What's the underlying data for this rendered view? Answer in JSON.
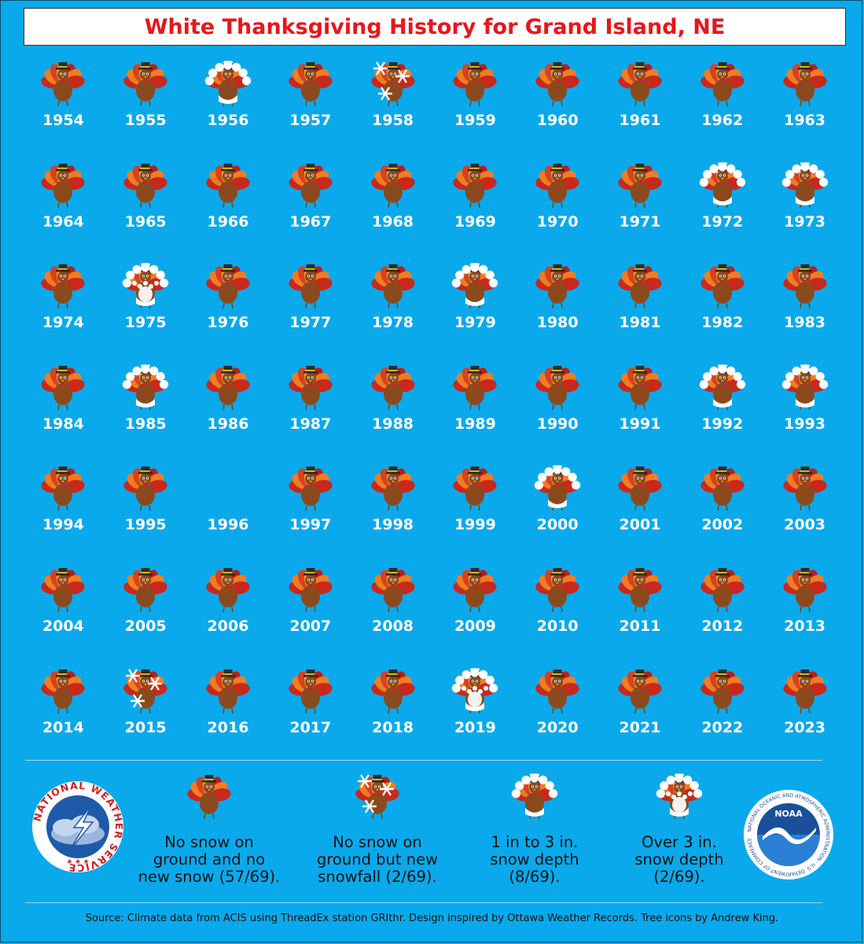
{
  "title": "White Thanksgiving History for Grand Island, NE",
  "colors": {
    "background": "#0aa9ec",
    "title": "#e8161b",
    "turkey_body": "#8b4a1d",
    "feather_red": "#c9281c",
    "feather_orange": "#ef7d22",
    "hat": "#2b2b2b"
  },
  "years": [
    {
      "year": "1954",
      "category": "none"
    },
    {
      "year": "1955",
      "category": "none"
    },
    {
      "year": "1956",
      "category": "depth_1_3"
    },
    {
      "year": "1957",
      "category": "none"
    },
    {
      "year": "1958",
      "category": "new_snowfall"
    },
    {
      "year": "1959",
      "category": "none"
    },
    {
      "year": "1960",
      "category": "none"
    },
    {
      "year": "1961",
      "category": "none"
    },
    {
      "year": "1962",
      "category": "none"
    },
    {
      "year": "1963",
      "category": "none"
    },
    {
      "year": "1964",
      "category": "none"
    },
    {
      "year": "1965",
      "category": "none"
    },
    {
      "year": "1966",
      "category": "none"
    },
    {
      "year": "1967",
      "category": "none"
    },
    {
      "year": "1968",
      "category": "none"
    },
    {
      "year": "1969",
      "category": "none"
    },
    {
      "year": "1970",
      "category": "none"
    },
    {
      "year": "1971",
      "category": "none"
    },
    {
      "year": "1972",
      "category": "depth_1_3"
    },
    {
      "year": "1973",
      "category": "depth_1_3"
    },
    {
      "year": "1974",
      "category": "none"
    },
    {
      "year": "1975",
      "category": "depth_over_3"
    },
    {
      "year": "1976",
      "category": "none"
    },
    {
      "year": "1977",
      "category": "none"
    },
    {
      "year": "1978",
      "category": "none"
    },
    {
      "year": "1979",
      "category": "depth_1_3"
    },
    {
      "year": "1980",
      "category": "none"
    },
    {
      "year": "1981",
      "category": "none"
    },
    {
      "year": "1982",
      "category": "none"
    },
    {
      "year": "1983",
      "category": "none"
    },
    {
      "year": "1984",
      "category": "none"
    },
    {
      "year": "1985",
      "category": "depth_1_3"
    },
    {
      "year": "1986",
      "category": "none"
    },
    {
      "year": "1987",
      "category": "none"
    },
    {
      "year": "1988",
      "category": "none"
    },
    {
      "year": "1989",
      "category": "none"
    },
    {
      "year": "1990",
      "category": "none"
    },
    {
      "year": "1991",
      "category": "none"
    },
    {
      "year": "1992",
      "category": "depth_1_3"
    },
    {
      "year": "1993",
      "category": "depth_1_3"
    },
    {
      "year": "1994",
      "category": "none"
    },
    {
      "year": "1995",
      "category": "none"
    },
    {
      "year": "1996",
      "category": "missing"
    },
    {
      "year": "1997",
      "category": "none"
    },
    {
      "year": "1998",
      "category": "none"
    },
    {
      "year": "1999",
      "category": "none"
    },
    {
      "year": "2000",
      "category": "depth_1_3"
    },
    {
      "year": "2001",
      "category": "none"
    },
    {
      "year": "2002",
      "category": "none"
    },
    {
      "year": "2003",
      "category": "none"
    },
    {
      "year": "2004",
      "category": "none"
    },
    {
      "year": "2005",
      "category": "none"
    },
    {
      "year": "2006",
      "category": "none"
    },
    {
      "year": "2007",
      "category": "none"
    },
    {
      "year": "2008",
      "category": "none"
    },
    {
      "year": "2009",
      "category": "none"
    },
    {
      "year": "2010",
      "category": "none"
    },
    {
      "year": "2011",
      "category": "none"
    },
    {
      "year": "2012",
      "category": "none"
    },
    {
      "year": "2013",
      "category": "none"
    },
    {
      "year": "2014",
      "category": "none"
    },
    {
      "year": "2015",
      "category": "new_snowfall"
    },
    {
      "year": "2016",
      "category": "none"
    },
    {
      "year": "2017",
      "category": "none"
    },
    {
      "year": "2018",
      "category": "none"
    },
    {
      "year": "2019",
      "category": "depth_over_3"
    },
    {
      "year": "2020",
      "category": "none"
    },
    {
      "year": "2021",
      "category": "none"
    },
    {
      "year": "2022",
      "category": "none"
    },
    {
      "year": "2023",
      "category": "none"
    }
  ],
  "legend": [
    {
      "category": "none",
      "line1": "No snow on",
      "line2": "ground and no",
      "line3": "new snow (57/69)."
    },
    {
      "category": "new_snowfall",
      "line1": "No snow on",
      "line2": "ground but new",
      "line3": "snowfall (2/69)."
    },
    {
      "category": "depth_1_3",
      "line1": "1 in to 3 in.",
      "line2": "snow depth",
      "line3": "(8/69)."
    },
    {
      "category": "depth_over_3",
      "line1": "Over 3 in.",
      "line2": "snow depth",
      "line3": "(2/69)."
    }
  ],
  "logos": {
    "nws_text": "NATIONAL WEATHER SERVICE",
    "noaa_text": "NOAA",
    "noaa_ring": "NATIONAL OCEANIC AND ATMOSPHERIC ADMINISTRATION · U.S. DEPARTMENT OF COMMERCE"
  },
  "footer": "Source: Climate data from ACIS using ThreadEx station GRIthr. Design inspired by Ottawa Weather Records. Tree icons by Andrew King."
}
